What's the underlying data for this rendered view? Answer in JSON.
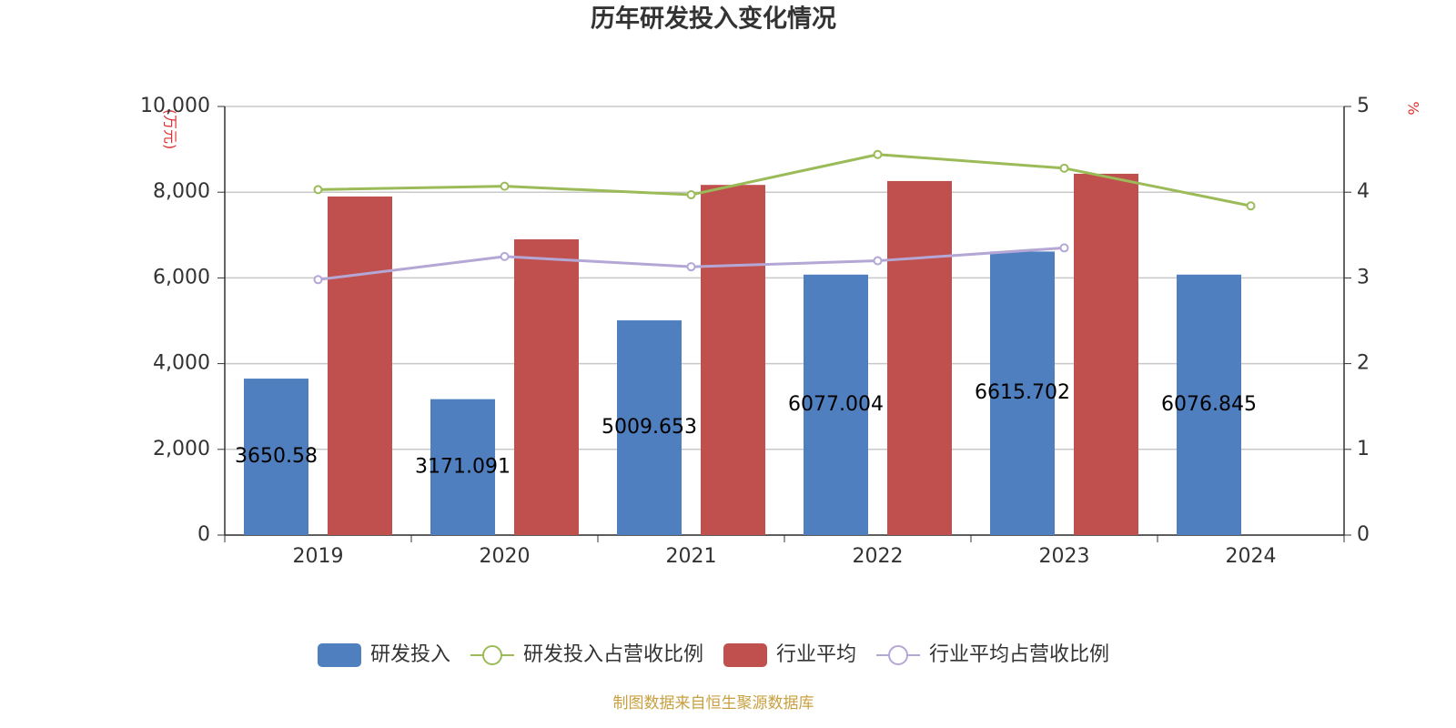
{
  "chart_data": {
    "type": "bar",
    "title": "历年研发投入变化情况",
    "y_axis_label": "(万元)",
    "y2_axis_label": "%",
    "source": "制图数据来自恒生聚源数据库",
    "categories": [
      "2019",
      "2020",
      "2021",
      "2022",
      "2023",
      "2024"
    ],
    "series": [
      {
        "name": "研发投入",
        "type": "bar",
        "color": "#4f7fbf",
        "labels": true,
        "values": [
          3650.58,
          3171.091,
          5009.653,
          6077.004,
          6615.702,
          6076.845
        ]
      },
      {
        "name": "研发投入占营收比例",
        "type": "line",
        "axis": "y2",
        "color": "#9bbb59",
        "values": [
          4.03,
          4.07,
          3.97,
          4.44,
          4.28,
          3.84
        ]
      },
      {
        "name": "行业平均",
        "type": "bar",
        "color": "#c0504d",
        "values": [
          7900,
          6900,
          8170,
          8260,
          8430,
          null
        ]
      },
      {
        "name": "行业平均占营收比例",
        "type": "line",
        "axis": "y2",
        "color": "#b4a7d6",
        "values": [
          2.98,
          3.25,
          3.13,
          3.2,
          3.35,
          null
        ]
      }
    ],
    "ylim": [
      0,
      10000
    ],
    "yticks": [
      0,
      {
        "value": 2000,
        "label": "2,000"
      },
      {
        "value": 4000,
        "label": "4,000"
      },
      {
        "value": 6000,
        "label": "6,000"
      },
      {
        "value": 8000,
        "label": "8,000"
      },
      {
        "value": 10000,
        "label": "10,000"
      }
    ],
    "y2lim": [
      0,
      5
    ],
    "y2ticks": [
      0,
      1,
      2,
      3,
      4,
      5
    ],
    "grid": true,
    "legend": "bottom"
  }
}
